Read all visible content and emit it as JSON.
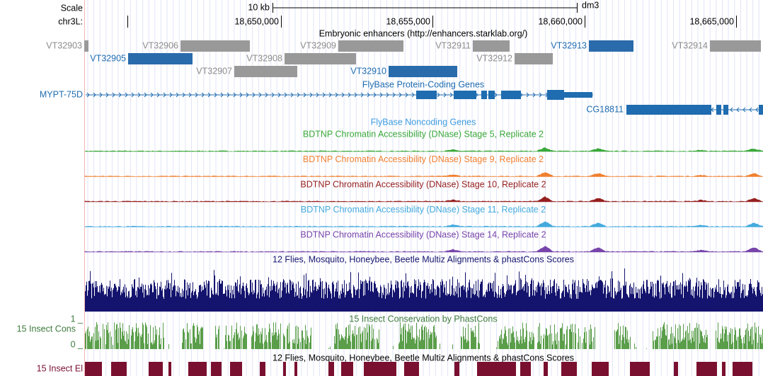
{
  "ruler": {
    "scale_label": "Scale",
    "scale_value": "10 kb",
    "assembly": "dm3",
    "chrom_label": "chr3L:",
    "positions": [
      "18,650,000",
      "18,655,000",
      "18,660,000",
      "18,665,000"
    ]
  },
  "enhancers": {
    "title": "Embryonic enhancers (http://enhancers.starklab.org/)",
    "features": [
      "VT32903",
      "VT32906",
      "VT32909",
      "VT32911",
      "VT32913",
      "VT32914",
      "VT32905",
      "VT32908",
      "VT32912",
      "VT32907",
      "VT32910"
    ]
  },
  "coding_genes": {
    "title": "FlyBase Protein-Coding Genes",
    "genes": [
      "MYPT-75D",
      "CG18811"
    ]
  },
  "noncoding_genes": {
    "title": "FlyBase Noncoding Genes"
  },
  "dnase_tracks": [
    "BDTNP Chromatin Accessibility (DNase) Stage 5, Replicate 2",
    "BDTNP Chromatin Accessibility (DNase) Stage 9, Replicate 2",
    "BDTNP Chromatin Accessibility (DNase) Stage 10, Replicate 2",
    "BDTNP Chromatin Accessibility (DNase) Stage 11, Replicate 2",
    "BDTNP Chromatin Accessibility (DNase) Stage 14, Replicate 2"
  ],
  "multiz": {
    "title": "12 Flies, Mosquito, Honeybee, Beetle Multiz Alignments & phastCons Scores"
  },
  "conservation": {
    "title": "15 Insect Conservation by PhastCons",
    "side_label": "15 Insect Cons",
    "max_label": "1 _",
    "min_label": "0 _"
  },
  "elements": {
    "title": "12 Flies, Mosquito, Honeybee, Beetle Multiz Alignments & phastCons Scores",
    "side_label": "15 Insect El"
  }
}
